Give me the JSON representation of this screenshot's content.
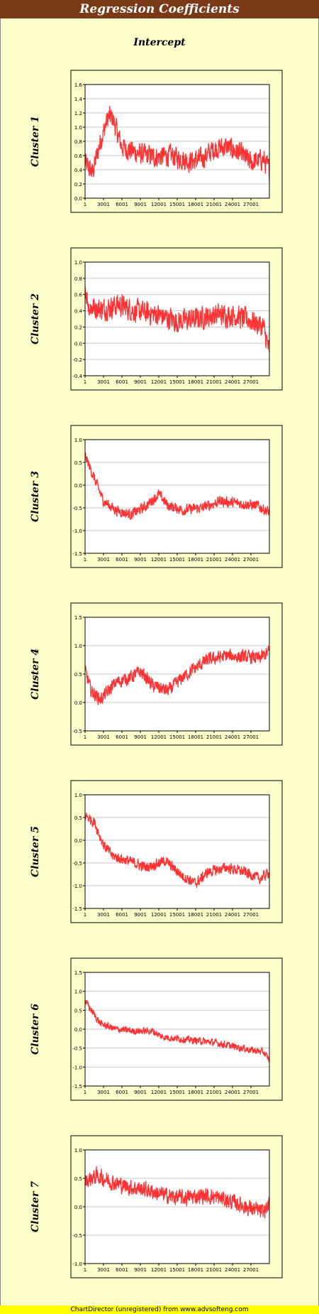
{
  "header": {
    "title": "Regression Coefficients",
    "subtitle": "Intercept"
  },
  "footer": {
    "text": "ChartDirector (unregistered) from www.advsofteng.com"
  },
  "colors": {
    "line": "#ff3333",
    "title_bg": "#7a3a17",
    "background": "#ffffcc",
    "footer_bg": "#ffff00"
  },
  "chart_data": [
    {
      "type": "line",
      "series": [
        {
          "name": "Cluster 1"
        }
      ],
      "ylabel": "Cluster 1",
      "ylim": [
        0.0,
        1.6
      ],
      "yticks": [
        "0.0",
        "0.2",
        "0.4",
        "0.6",
        "0.8",
        "1.0",
        "1.2",
        "1.4",
        "1.6"
      ],
      "xticks": [
        "1",
        "3001",
        "6001",
        "9001",
        "12001",
        "15001",
        "18001",
        "21001",
        "24001",
        "27001"
      ],
      "xlim": [
        1,
        30000
      ],
      "trend": [
        [
          1,
          0.5
        ],
        [
          1200,
          0.35
        ],
        [
          2500,
          0.8
        ],
        [
          3800,
          1.15
        ],
        [
          4500,
          1.12
        ],
        [
          6000,
          0.72
        ],
        [
          9000,
          0.62
        ],
        [
          11500,
          0.58
        ],
        [
          14000,
          0.6
        ],
        [
          17000,
          0.52
        ],
        [
          19000,
          0.55
        ],
        [
          21000,
          0.7
        ],
        [
          23000,
          0.72
        ],
        [
          25000,
          0.65
        ],
        [
          27000,
          0.5
        ],
        [
          29000,
          0.55
        ],
        [
          30000,
          0.4
        ]
      ],
      "noise": 0.13,
      "grid": true
    },
    {
      "type": "line",
      "series": [
        {
          "name": "Cluster 2"
        }
      ],
      "ylabel": "Cluster 2",
      "ylim": [
        -0.4,
        1.0
      ],
      "yticks": [
        "-0.4",
        "-0.2",
        "0.0",
        "0.2",
        "0.4",
        "0.6",
        "0.8",
        "1.0"
      ],
      "xticks": [
        "1",
        "3001",
        "6001",
        "9001",
        "12001",
        "15001",
        "18001",
        "21001",
        "24001",
        "27001"
      ],
      "xlim": [
        1,
        30000
      ],
      "trend": [
        [
          1,
          0.7
        ],
        [
          600,
          0.45
        ],
        [
          3000,
          0.42
        ],
        [
          5500,
          0.48
        ],
        [
          8000,
          0.4
        ],
        [
          12000,
          0.35
        ],
        [
          15000,
          0.27
        ],
        [
          18000,
          0.3
        ],
        [
          21000,
          0.35
        ],
        [
          24000,
          0.35
        ],
        [
          27000,
          0.28
        ],
        [
          29000,
          0.2
        ],
        [
          30000,
          -0.1
        ]
      ],
      "noise": 0.12,
      "grid": true
    },
    {
      "type": "line",
      "series": [
        {
          "name": "Cluster 3"
        }
      ],
      "ylabel": "Cluster 3",
      "ylim": [
        -1.5,
        1.0
      ],
      "yticks": [
        "-1.5",
        "-1.0",
        "-0.5",
        "0.0",
        "0.5",
        "1.0"
      ],
      "xticks": [
        "1",
        "3001",
        "6001",
        "9001",
        "12001",
        "15001",
        "18001",
        "21001",
        "24001",
        "27001"
      ],
      "xlim": [
        1,
        30000
      ],
      "trend": [
        [
          1,
          0.65
        ],
        [
          1500,
          0.15
        ],
        [
          3000,
          -0.35
        ],
        [
          5000,
          -0.55
        ],
        [
          7500,
          -0.65
        ],
        [
          10000,
          -0.45
        ],
        [
          12000,
          -0.2
        ],
        [
          13500,
          -0.45
        ],
        [
          16000,
          -0.55
        ],
        [
          19000,
          -0.5
        ],
        [
          22000,
          -0.35
        ],
        [
          25000,
          -0.4
        ],
        [
          28000,
          -0.45
        ],
        [
          30000,
          -0.6
        ]
      ],
      "noise": 0.1,
      "grid": true
    },
    {
      "type": "line",
      "series": [
        {
          "name": "Cluster 4"
        }
      ],
      "ylabel": "Cluster 4",
      "ylim": [
        -0.5,
        1.5
      ],
      "yticks": [
        "-0.5",
        "0.0",
        "0.5",
        "1.0",
        "1.5"
      ],
      "xticks": [
        "1",
        "3001",
        "6001",
        "9001",
        "12001",
        "15001",
        "18001",
        "21001",
        "24001",
        "27001"
      ],
      "xlim": [
        1,
        30000
      ],
      "trend": [
        [
          1,
          0.55
        ],
        [
          1000,
          0.2
        ],
        [
          2500,
          0.05
        ],
        [
          5000,
          0.35
        ],
        [
          7500,
          0.45
        ],
        [
          9000,
          0.55
        ],
        [
          11000,
          0.3
        ],
        [
          13500,
          0.2
        ],
        [
          16000,
          0.45
        ],
        [
          18500,
          0.65
        ],
        [
          20000,
          0.75
        ],
        [
          23000,
          0.82
        ],
        [
          26000,
          0.8
        ],
        [
          28500,
          0.78
        ],
        [
          30000,
          0.9
        ]
      ],
      "noise": 0.1,
      "grid": true
    },
    {
      "type": "line",
      "series": [
        {
          "name": "Cluster 5"
        }
      ],
      "ylabel": "Cluster 5",
      "ylim": [
        -1.5,
        1.0
      ],
      "yticks": [
        "-1.5",
        "-1.0",
        "-0.5",
        "0.0",
        "0.5",
        "1.0"
      ],
      "xticks": [
        "1",
        "3001",
        "6001",
        "9001",
        "12001",
        "15001",
        "18001",
        "21001",
        "24001",
        "27001"
      ],
      "xlim": [
        1,
        30000
      ],
      "trend": [
        [
          1,
          0.55
        ],
        [
          1500,
          0.4
        ],
        [
          3000,
          -0.1
        ],
        [
          4500,
          -0.35
        ],
        [
          7000,
          -0.45
        ],
        [
          10000,
          -0.6
        ],
        [
          13000,
          -0.45
        ],
        [
          16000,
          -0.8
        ],
        [
          18000,
          -0.95
        ],
        [
          20000,
          -0.7
        ],
        [
          23000,
          -0.6
        ],
        [
          26000,
          -0.7
        ],
        [
          28500,
          -0.85
        ],
        [
          30000,
          -0.7
        ]
      ],
      "noise": 0.1,
      "grid": true
    },
    {
      "type": "line",
      "series": [
        {
          "name": "Cluster 6"
        }
      ],
      "ylabel": "Cluster 6",
      "ylim": [
        -1.5,
        1.5
      ],
      "yticks": [
        "-1.5",
        "-1.0",
        "-0.5",
        "0.0",
        "0.5",
        "1.0",
        "1.5"
      ],
      "xticks": [
        "1",
        "3001",
        "6001",
        "9001",
        "12001",
        "15001",
        "18001",
        "21001",
        "24001",
        "27001"
      ],
      "xlim": [
        1,
        30000
      ],
      "trend": [
        [
          1,
          0.75
        ],
        [
          1000,
          0.5
        ],
        [
          2500,
          0.15
        ],
        [
          5000,
          0.0
        ],
        [
          8000,
          -0.05
        ],
        [
          11000,
          -0.05
        ],
        [
          12500,
          -0.2
        ],
        [
          15000,
          -0.25
        ],
        [
          18000,
          -0.3
        ],
        [
          21000,
          -0.35
        ],
        [
          24000,
          -0.45
        ],
        [
          27000,
          -0.55
        ],
        [
          29000,
          -0.6
        ],
        [
          30000,
          -0.8
        ]
      ],
      "noise": 0.08,
      "grid": true
    },
    {
      "type": "line",
      "series": [
        {
          "name": "Cluster 7"
        }
      ],
      "ylabel": "Cluster 7",
      "ylim": [
        -1.0,
        1.0
      ],
      "yticks": [
        "-1.0",
        "-0.5",
        "0.0",
        "0.5",
        "1.0"
      ],
      "xticks": [
        "1",
        "3001",
        "6001",
        "9001",
        "12001",
        "15001",
        "18001",
        "21001",
        "24001",
        "27001"
      ],
      "xlim": [
        1,
        30000
      ],
      "trend": [
        [
          1,
          0.45
        ],
        [
          2000,
          0.55
        ],
        [
          4000,
          0.45
        ],
        [
          7000,
          0.35
        ],
        [
          10000,
          0.3
        ],
        [
          13000,
          0.2
        ],
        [
          16000,
          0.15
        ],
        [
          19000,
          0.2
        ],
        [
          22000,
          0.15
        ],
        [
          25000,
          0.05
        ],
        [
          27500,
          -0.05
        ],
        [
          29000,
          -0.1
        ],
        [
          30000,
          0.05
        ]
      ],
      "noise": 0.12,
      "grid": true
    }
  ]
}
